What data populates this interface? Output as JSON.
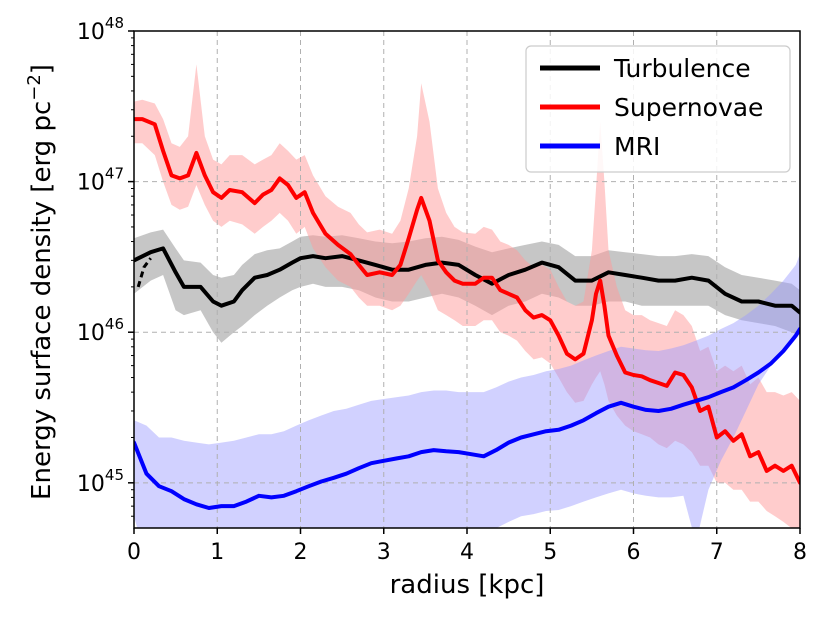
{
  "chart_data": {
    "type": "line",
    "title": "",
    "xlabel": "radius [kpc]",
    "ylabel": "Energy surface density [erg pc",
    "ylabel_sup": "−2",
    "ylabel_close": "]",
    "xlim": [
      0,
      8
    ],
    "ylim_log10": [
      44.7,
      48
    ],
    "yscale": "log",
    "grid": true,
    "legend_position": "top-right",
    "x_ticks": [
      "0",
      "1",
      "2",
      "3",
      "4",
      "5",
      "6",
      "7",
      "8"
    ],
    "y_ticks": [
      {
        "base": "10",
        "exp": "45"
      },
      {
        "base": "10",
        "exp": "46"
      },
      {
        "base": "10",
        "exp": "47"
      },
      {
        "base": "10",
        "exp": "48"
      }
    ],
    "series": [
      {
        "name": "Turbulence",
        "color": "#000000",
        "band_color": "#808080",
        "x": [
          0,
          0.2,
          0.35,
          0.5,
          0.6,
          0.8,
          0.95,
          1.05,
          1.2,
          1.3,
          1.45,
          1.6,
          1.75,
          1.9,
          2.0,
          2.15,
          2.3,
          2.5,
          2.7,
          2.9,
          3.1,
          3.3,
          3.5,
          3.7,
          3.9,
          4.1,
          4.3,
          4.5,
          4.7,
          4.9,
          5.1,
          5.3,
          5.5,
          5.7,
          5.9,
          6.1,
          6.3,
          6.5,
          6.7,
          6.9,
          7.1,
          7.3,
          7.5,
          7.7,
          7.9,
          8.0
        ],
        "y": [
          3e+46,
          3.4e+46,
          3.6e+46,
          2.5e+46,
          2e+46,
          2e+46,
          1.6e+46,
          1.5e+46,
          1.6e+46,
          1.9e+46,
          2.3e+46,
          2.4e+46,
          2.6e+46,
          2.9e+46,
          3.1e+46,
          3.2e+46,
          3.1e+46,
          3.2e+46,
          3e+46,
          2.8e+46,
          2.6e+46,
          2.6e+46,
          2.8e+46,
          2.9e+46,
          2.8e+46,
          2.4e+46,
          2.1e+46,
          2.4e+46,
          2.6e+46,
          2.9e+46,
          2.7e+46,
          2.2e+46,
          2.2e+46,
          2.5e+46,
          2.4e+46,
          2.3e+46,
          2.2e+46,
          2.2e+46,
          2.3e+46,
          2.2e+46,
          1.8e+46,
          1.6e+46,
          1.6e+46,
          1.5e+46,
          1.5e+46,
          1.35e+46
        ],
        "lower": [
          1.8e+46,
          2.2e+46,
          2.4e+46,
          1.4e+46,
          1.3e+46,
          1.4e+46,
          1e+46,
          8.5e+45,
          1e+46,
          1.1e+46,
          1.3e+46,
          1.5e+46,
          1.7e+46,
          1.9e+46,
          2e+46,
          2.1e+46,
          2e+46,
          2e+46,
          1.9e+46,
          1.7e+46,
          1.6e+46,
          1.6e+46,
          1.7e+46,
          1.8e+46,
          1.7e+46,
          1.5e+46,
          1.3e+46,
          1.5e+46,
          1.6e+46,
          1.8e+46,
          1.7e+46,
          1.5e+46,
          1.5e+46,
          1.6e+46,
          1.6e+46,
          1.5e+46,
          1.5e+46,
          1.5e+46,
          1.5e+46,
          1.5e+46,
          1.3e+46,
          1.2e+46,
          1.15e+46,
          1.1e+46,
          1e+46,
          9.5e+45
        ],
        "upper": [
          4.2e+46,
          4.6e+46,
          4.8e+46,
          3.6e+46,
          3e+46,
          2.9e+46,
          2.4e+46,
          2.3e+46,
          2.4e+46,
          2.8e+46,
          3.3e+46,
          3.5e+46,
          3.6e+46,
          4e+46,
          4.3e+46,
          4.4e+46,
          4.3e+46,
          4.4e+46,
          4.2e+46,
          4e+46,
          3.9e+46,
          4e+46,
          4.2e+46,
          4.3e+46,
          4.1e+46,
          3.7e+46,
          3.4e+46,
          3.6e+46,
          3.8e+46,
          4e+46,
          3.8e+46,
          3.2e+46,
          3.2e+46,
          3.5e+46,
          3.4e+46,
          3.3e+46,
          3.2e+46,
          3.2e+46,
          3.3e+46,
          3.2e+46,
          2.7e+46,
          2.4e+46,
          2.3e+46,
          2.2e+46,
          2.1e+46,
          1.9e+46
        ]
      },
      {
        "name": "Supernovae",
        "color": "#ff0000",
        "band_color": "#ff9999",
        "x": [
          0,
          0.1,
          0.25,
          0.35,
          0.45,
          0.55,
          0.65,
          0.75,
          0.85,
          0.95,
          1.05,
          1.15,
          1.3,
          1.45,
          1.55,
          1.65,
          1.75,
          1.85,
          1.95,
          2.05,
          2.15,
          2.3,
          2.45,
          2.6,
          2.7,
          2.8,
          2.95,
          3.1,
          3.2,
          3.3,
          3.4,
          3.45,
          3.55,
          3.65,
          3.75,
          3.85,
          3.95,
          4.1,
          4.2,
          4.3,
          4.4,
          4.5,
          4.6,
          4.7,
          4.8,
          4.9,
          5.0,
          5.1,
          5.2,
          5.3,
          5.4,
          5.5,
          5.55,
          5.6,
          5.65,
          5.7,
          5.8,
          5.9,
          6.0,
          6.1,
          6.2,
          6.3,
          6.4,
          6.5,
          6.6,
          6.7,
          6.8,
          6.9,
          7.0,
          7.1,
          7.2,
          7.3,
          7.4,
          7.5,
          7.6,
          7.7,
          7.8,
          7.9,
          8.0
        ],
        "y": [
          2.6e+47,
          2.6e+47,
          2.4e+47,
          1.6e+47,
          1.1e+47,
          1.05e+47,
          1.1e+47,
          1.55e+47,
          1.1e+47,
          8.5e+46,
          7.8e+46,
          8.8e+46,
          8.5e+46,
          7.2e+46,
          8.2e+46,
          8.8e+46,
          1.05e+47,
          9.5e+46,
          7.8e+46,
          8.5e+46,
          6.2e+46,
          4.5e+46,
          3.8e+46,
          3.3e+46,
          2.8e+46,
          2.4e+46,
          2.5e+46,
          2.4e+46,
          2.8e+46,
          4.2e+46,
          6.5e+46,
          7.8e+46,
          5.5e+46,
          3e+46,
          2.5e+46,
          2.2e+46,
          2.1e+46,
          2.1e+46,
          2.3e+46,
          2.3e+46,
          1.9e+46,
          1.8e+46,
          1.7e+46,
          1.4e+46,
          1.25e+46,
          1.3e+46,
          1.2e+46,
          9.5e+45,
          7.2e+45,
          6.6e+45,
          7.2e+45,
          1.2e+46,
          1.8e+46,
          2.2e+46,
          1.5e+46,
          9.5e+45,
          7e+45,
          5.4e+45,
          5.2e+45,
          5.1e+45,
          4.8e+45,
          4.6e+45,
          4.4e+45,
          5.4e+45,
          5.2e+45,
          4.3e+45,
          3e+45,
          3.2e+45,
          2e+45,
          2.2e+45,
          1.9e+45,
          2.1e+45,
          1.5e+45,
          1.6e+45,
          1.2e+45,
          1.3e+45,
          1.2e+45,
          1.3e+45,
          1e+45
        ],
        "lower": [
          1.8e+47,
          1.8e+47,
          1.5e+47,
          1e+47,
          7e+46,
          6.5e+46,
          6.8e+46,
          9.5e+46,
          7e+46,
          5.5e+46,
          5e+46,
          5.5e+46,
          5.2e+46,
          4.5e+46,
          5e+46,
          5.5e+46,
          6.2e+46,
          5.5e+46,
          4.5e+46,
          5e+46,
          3.6e+46,
          2.7e+46,
          2.2e+46,
          2e+46,
          1.7e+46,
          1.5e+46,
          1.5e+46,
          1.4e+46,
          1.5e+46,
          1.8e+46,
          2.2e+46,
          2.4e+46,
          1.9e+46,
          1.4e+46,
          1.3e+46,
          1.2e+46,
          1.1e+46,
          1.1e+46,
          1.2e+46,
          1.2e+46,
          1e+46,
          9.5e+45,
          8.8e+45,
          7.5e+45,
          6.6e+45,
          6.8e+45,
          6.2e+45,
          5e+45,
          4e+45,
          3.4e+45,
          3.5e+45,
          4.5e+45,
          5e+45,
          5.5e+45,
          4.5e+45,
          3.5e+45,
          2.8e+45,
          2.4e+45,
          2.2e+45,
          2.1e+45,
          2e+45,
          1.8e+45,
          1.7e+45,
          1.9e+45,
          1.8e+45,
          1.6e+45,
          1.3e+45,
          1.3e+45,
          1e+45,
          1e+45,
          9e+44,
          9e+44,
          7.5e+44,
          7.5e+44,
          6.5e+44,
          6e+44,
          5.5e+44,
          5e+44,
          5e+44
        ],
        "upper": [
          3.4e+47,
          3.5e+47,
          3.3e+47,
          2.6e+47,
          1.8e+47,
          1.7e+47,
          2e+47,
          6e+47,
          2e+47,
          1.4e+47,
          1.3e+47,
          1.5e+47,
          1.5e+47,
          1.3e+47,
          1.4e+47,
          1.5e+47,
          1.8e+47,
          1.6e+47,
          1.4e+47,
          1.5e+47,
          1.1e+47,
          8e+46,
          6.8e+46,
          6.2e+46,
          5.2e+46,
          4.6e+46,
          4.8e+46,
          4.5e+46,
          5.5e+46,
          9e+46,
          2e+47,
          4.5e+47,
          2.5e+47,
          9e+46,
          6.2e+46,
          5e+46,
          4.6e+46,
          4.5e+46,
          5e+46,
          4.8e+46,
          4e+46,
          3.8e+46,
          3.5e+46,
          3e+46,
          2.7e+46,
          2.8e+46,
          2.6e+46,
          2e+46,
          1.6e+46,
          1.5e+46,
          1.6e+46,
          3.5e+46,
          9e+46,
          2.5e+47,
          1e+47,
          3.5e+46,
          2e+46,
          1.4e+46,
          1.3e+46,
          1.3e+46,
          1.2e+46,
          1.15e+46,
          1.1e+46,
          1.4e+46,
          1.3e+46,
          1.1e+46,
          7.5e+45,
          8e+45,
          5.5e+45,
          6e+45,
          5.5e+45,
          6e+45,
          4.5e+45,
          5e+45,
          4e+45,
          4e+45,
          3.8e+45,
          4e+45,
          3.5e+45
        ]
      },
      {
        "name": "MRI",
        "color": "#0000ff",
        "band_color": "#9999ff",
        "x": [
          0,
          0.15,
          0.3,
          0.45,
          0.6,
          0.75,
          0.9,
          1.05,
          1.2,
          1.35,
          1.5,
          1.65,
          1.8,
          1.95,
          2.1,
          2.25,
          2.4,
          2.55,
          2.7,
          2.85,
          3.0,
          3.15,
          3.3,
          3.45,
          3.6,
          3.75,
          3.9,
          4.05,
          4.2,
          4.35,
          4.5,
          4.65,
          4.8,
          4.95,
          5.1,
          5.25,
          5.4,
          5.55,
          5.7,
          5.85,
          6.0,
          6.15,
          6.3,
          6.45,
          6.6,
          6.75,
          6.9,
          7.05,
          7.2,
          7.35,
          7.5,
          7.65,
          7.8,
          7.95,
          8.0
        ],
        "y": [
          1.85e+45,
          1.15e+45,
          9.5e+44,
          8.8e+44,
          7.8e+44,
          7.2e+44,
          6.8e+44,
          7e+44,
          7e+44,
          7.5e+44,
          8.2e+44,
          8e+44,
          8.2e+44,
          8.8e+44,
          9.5e+44,
          1.02e+45,
          1.08e+45,
          1.15e+45,
          1.25e+45,
          1.35e+45,
          1.4e+45,
          1.45e+45,
          1.5e+45,
          1.6e+45,
          1.65e+45,
          1.62e+45,
          1.6e+45,
          1.55e+45,
          1.5e+45,
          1.65e+45,
          1.85e+45,
          2e+45,
          2.1e+45,
          2.2e+45,
          2.25e+45,
          2.4e+45,
          2.6e+45,
          2.9e+45,
          3.2e+45,
          3.4e+45,
          3.2e+45,
          3.05e+45,
          3e+45,
          3.1e+45,
          3.3e+45,
          3.5e+45,
          3.7e+45,
          4e+45,
          4.3e+45,
          4.8e+45,
          5.4e+45,
          6.2e+45,
          7.5e+45,
          9.5e+45,
          1.05e+46
        ],
        "lower": [
          6e+44,
          3e+44,
          3e+44,
          2.8e+44,
          2.5e+44,
          2.2e+44,
          2e+44,
          2e+44,
          2e+44,
          2.2e+44,
          2.5e+44,
          2.5e+44,
          2.6e+44,
          2.8e+44,
          3e+44,
          3.2e+44,
          3.4e+44,
          3.6e+44,
          4e+44,
          4.2e+44,
          4.4e+44,
          4.5e+44,
          4.6e+44,
          4.8e+44,
          5e+44,
          5e+44,
          5e+44,
          4.8e+44,
          4.6e+44,
          5e+44,
          5.5e+44,
          6e+44,
          6.2e+44,
          6.5e+44,
          6.6e+44,
          7e+44,
          7.5e+44,
          8e+44,
          8.5e+44,
          9e+44,
          8.5e+44,
          8.2e+44,
          8e+44,
          8e+44,
          8.2e+44,
          4e+44,
          9e+44,
          1.4e+45,
          2e+45,
          3e+45,
          4.5e+45,
          6e+45,
          7.5e+45,
          9.5e+45,
          1.05e+46
        ],
        "upper": [
          2.6e+45,
          2.4e+45,
          2e+45,
          2e+45,
          1.9e+45,
          1.85e+45,
          1.8e+45,
          1.85e+45,
          1.9e+45,
          2e+45,
          2.1e+45,
          2.1e+45,
          2.2e+45,
          2.4e+45,
          2.6e+45,
          2.8e+45,
          3e+45,
          3.1e+45,
          3.3e+45,
          3.5e+45,
          3.6e+45,
          3.7e+45,
          3.8e+45,
          4e+45,
          4.1e+45,
          4.1e+45,
          4e+45,
          4e+45,
          4e+45,
          4.3e+45,
          4.7e+45,
          5e+45,
          5.2e+45,
          5.5e+45,
          5.7e+45,
          6e+45,
          6.5e+45,
          7e+45,
          7.5e+45,
          8e+45,
          7.8e+45,
          7.6e+45,
          7.5e+45,
          7.8e+45,
          8.2e+45,
          8.8e+45,
          9.5e+45,
          1.05e+46,
          1.15e+46,
          1.3e+46,
          1.5e+46,
          1.8e+46,
          2.2e+46,
          2.8e+46,
          3.3e+46
        ]
      }
    ],
    "extra_series": {
      "name": "turbulence-dashed-start",
      "color": "#000000",
      "x": [
        0.05,
        0.12,
        0.2
      ],
      "y": [
        2e+46,
        2.7e+46,
        3.1e+46
      ]
    }
  }
}
